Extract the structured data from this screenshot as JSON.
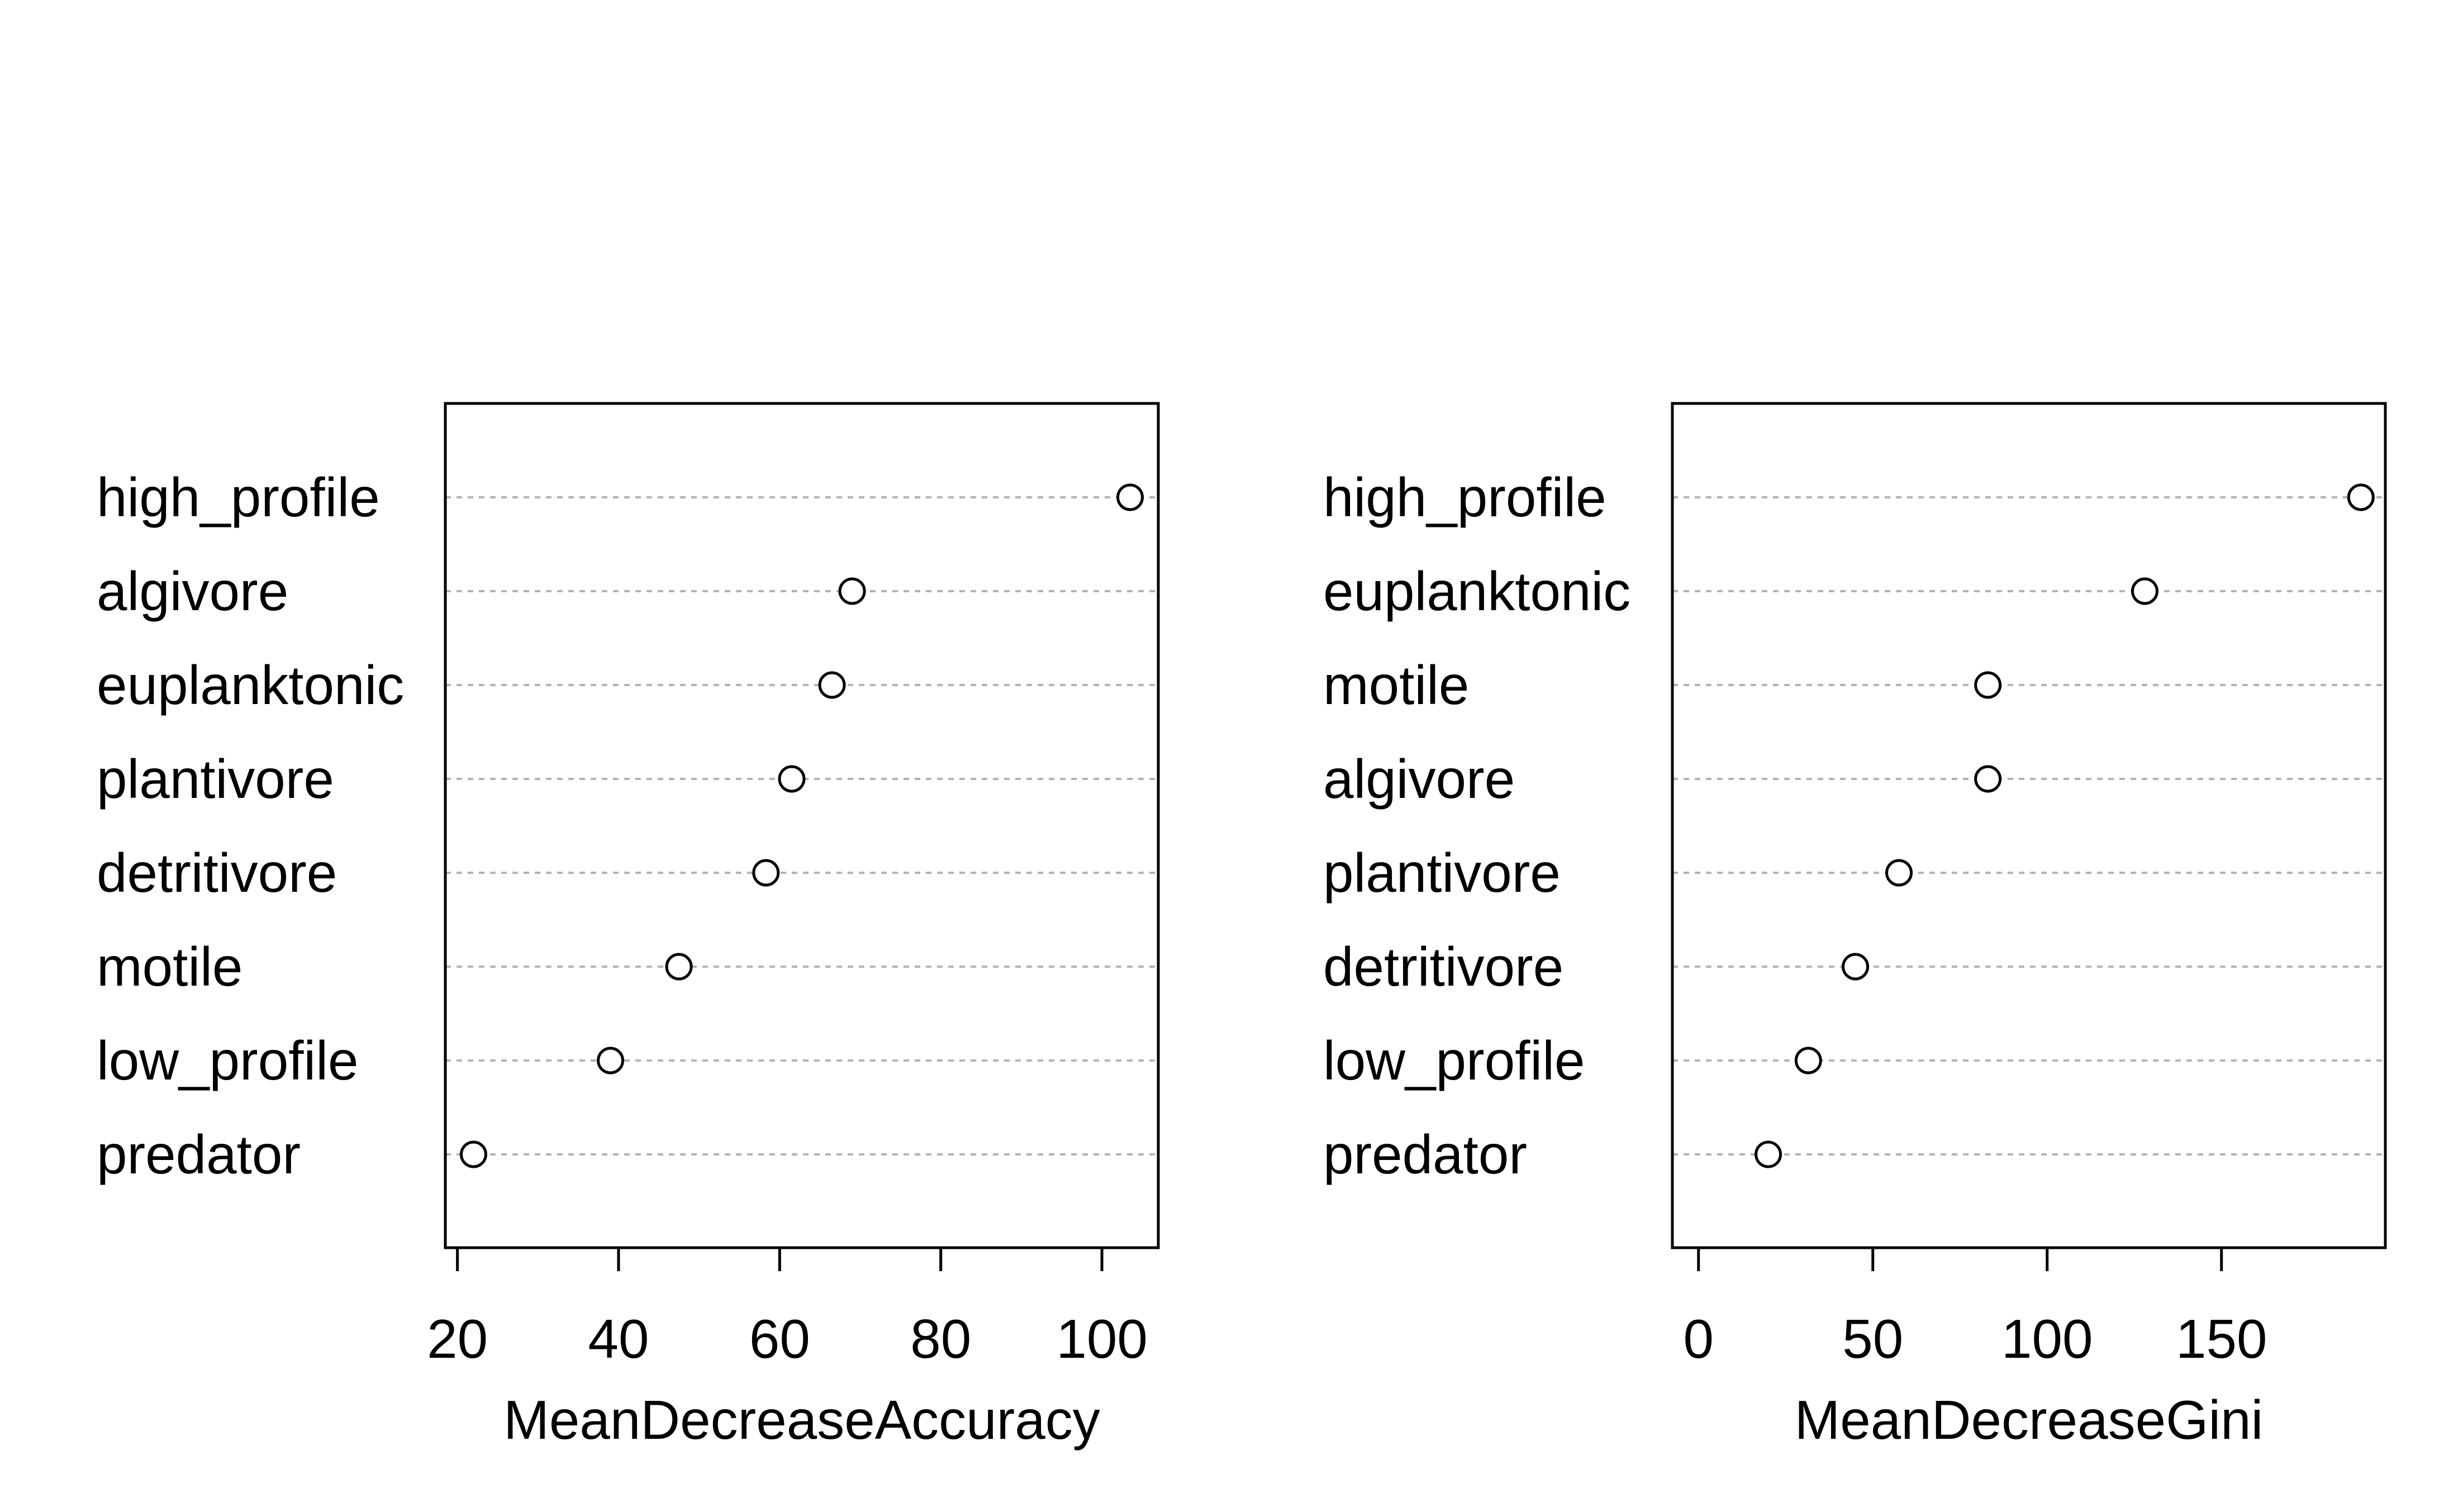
{
  "chart_data": [
    {
      "type": "scatter",
      "title": "",
      "xlabel": "MeanDecreaseAccuracy",
      "ylabel": "",
      "categories": [
        "high_profile",
        "algivore",
        "euplanktonic",
        "plantivore",
        "detritivore",
        "motile",
        "low_profile",
        "predator"
      ],
      "values": [
        103.5,
        69,
        66.5,
        61.5,
        58.3,
        47.5,
        39,
        22
      ],
      "xlim": [
        18.5,
        107
      ],
      "xticks": [
        "20",
        "40",
        "60",
        "80",
        "100"
      ],
      "tick_values": [
        20,
        40,
        60,
        80,
        100
      ],
      "grid": false,
      "legend": "none"
    },
    {
      "type": "scatter",
      "title": "",
      "xlabel": "MeanDecreaseGini",
      "ylabel": "",
      "categories": [
        "high_profile",
        "euplanktonic",
        "motile",
        "algivore",
        "plantivore",
        "detritivore",
        "low_profile",
        "predator"
      ],
      "values": [
        190,
        128,
        83,
        83,
        57.5,
        45,
        31.5,
        20
      ],
      "xlim": [
        -7.5,
        197
      ],
      "xticks": [
        "0",
        "50",
        "100",
        "150"
      ],
      "tick_values": [
        0,
        50,
        100,
        150
      ],
      "grid": false,
      "legend": "none"
    }
  ]
}
